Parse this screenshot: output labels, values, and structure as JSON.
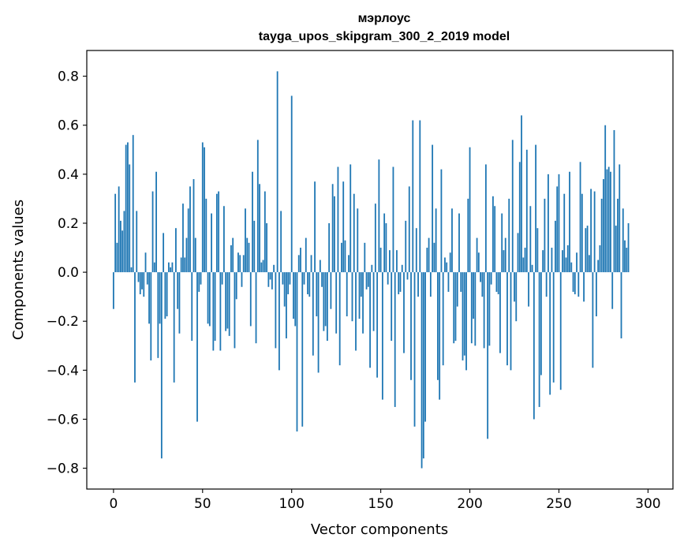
{
  "chart_data": {
    "type": "bar",
    "title_line1": "мэрлоус",
    "title_line2": "tayga_upos_skipgram_300_2_2019 model",
    "xlabel": "Vector components",
    "ylabel": "Components values",
    "xlim": [
      -15,
      314
    ],
    "ylim": [
      -0.885,
      0.905
    ],
    "xticks": [
      0,
      50,
      100,
      150,
      200,
      250,
      300
    ],
    "xtick_labels": [
      "0",
      "50",
      "100",
      "150",
      "200",
      "250",
      "300"
    ],
    "yticks": [
      -0.8,
      -0.6,
      -0.4,
      -0.2,
      0.0,
      0.2,
      0.4,
      0.6,
      0.8
    ],
    "ytick_labels": [
      "−0.8",
      "−0.6",
      "−0.4",
      "−0.2",
      "0.0",
      "0.2",
      "0.4",
      "0.6",
      "0.8"
    ],
    "bar_color": "#1f77b4",
    "values": [
      -0.15,
      0.32,
      0.12,
      0.35,
      0.21,
      0.17,
      0.25,
      0.52,
      0.53,
      0.44,
      0.02,
      0.56,
      -0.45,
      0.25,
      -0.04,
      -0.09,
      -0.07,
      -0.1,
      0.08,
      -0.05,
      -0.21,
      -0.36,
      0.33,
      0.04,
      0.41,
      -0.35,
      -0.21,
      -0.76,
      0.16,
      -0.19,
      -0.18,
      0.04,
      0.02,
      0.04,
      -0.45,
      0.18,
      -0.15,
      -0.25,
      0.06,
      0.28,
      0.06,
      0.14,
      0.26,
      0.35,
      -0.28,
      0.38,
      0.14,
      -0.61,
      -0.08,
      -0.05,
      0.53,
      0.51,
      0.3,
      -0.21,
      -0.22,
      0.24,
      -0.32,
      -0.28,
      0.32,
      0.33,
      -0.32,
      -0.05,
      0.27,
      -0.24,
      -0.23,
      -0.26,
      0.11,
      0.14,
      -0.31,
      -0.11,
      0.08,
      0.07,
      -0.06,
      0.07,
      0.26,
      0.14,
      0.12,
      -0.22,
      0.41,
      0.21,
      -0.29,
      0.54,
      0.36,
      0.04,
      0.05,
      0.33,
      0.2,
      -0.06,
      -0.03,
      -0.07,
      0.03,
      -0.31,
      0.82,
      -0.4,
      0.25,
      -0.05,
      -0.14,
      -0.27,
      -0.09,
      -0.05,
      0.72,
      -0.19,
      -0.22,
      -0.65,
      0.07,
      0.1,
      -0.63,
      -0.05,
      0.14,
      -0.09,
      -0.1,
      0.07,
      -0.34,
      0.37,
      -0.18,
      -0.41,
      0.05,
      -0.06,
      -0.24,
      -0.22,
      -0.28,
      0.2,
      -0.15,
      0.36,
      0.31,
      -0.25,
      0.43,
      -0.38,
      0.12,
      0.37,
      0.13,
      -0.18,
      0.07,
      0.44,
      -0.2,
      0.32,
      -0.32,
      0.26,
      -0.19,
      -0.1,
      -0.25,
      0.12,
      -0.07,
      -0.06,
      -0.39,
      0.03,
      -0.24,
      0.28,
      -0.43,
      0.46,
      0.1,
      -0.52,
      0.24,
      0.2,
      -0.05,
      0.09,
      -0.28,
      0.43,
      -0.55,
      0.09,
      -0.09,
      -0.08,
      0.03,
      -0.33,
      0.21,
      -0.03,
      0.35,
      -0.44,
      0.62,
      -0.63,
      0.18,
      -0.1,
      0.62,
      -0.8,
      -0.76,
      -0.61,
      0.1,
      0.14,
      -0.1,
      0.52,
      0.12,
      0.26,
      -0.44,
      -0.52,
      0.42,
      -0.38,
      0.06,
      0.04,
      -0.08,
      0.08,
      0.26,
      -0.29,
      -0.28,
      -0.14,
      0.24,
      -0.08,
      -0.36,
      -0.34,
      -0.4,
      0.3,
      0.51,
      -0.29,
      -0.19,
      -0.3,
      0.14,
      0.08,
      -0.04,
      -0.1,
      -0.31,
      0.44,
      -0.68,
      -0.3,
      -0.05,
      0.31,
      0.27,
      -0.08,
      -0.09,
      -0.33,
      0.24,
      0.09,
      0.14,
      -0.38,
      0.3,
      -0.4,
      0.54,
      -0.12,
      -0.2,
      0.16,
      0.45,
      0.64,
      0.06,
      0.1,
      0.5,
      -0.14,
      0.27,
      0.03,
      -0.6,
      0.52,
      0.18,
      -0.55,
      -0.42,
      0.09,
      0.3,
      -0.1,
      0.4,
      -0.5,
      0.1,
      -0.45,
      0.21,
      0.35,
      0.4,
      -0.48,
      0.09,
      0.32,
      0.06,
      0.11,
      0.41,
      0.04,
      -0.08,
      -0.09,
      0.08,
      -0.1,
      0.45,
      0.32,
      -0.12,
      0.18,
      0.19,
      0.07,
      0.34,
      -0.39,
      0.33,
      -0.18,
      0.05,
      0.11,
      0.3,
      0.38,
      0.6,
      0.42,
      0.43,
      0.41,
      -0.15,
      0.58,
      0.19,
      0.3,
      0.44,
      -0.27,
      0.26,
      0.13,
      0.1,
      0.2
    ]
  }
}
